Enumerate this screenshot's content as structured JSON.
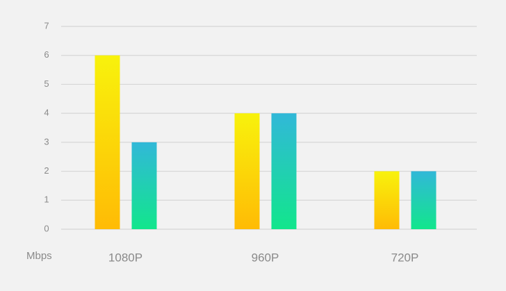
{
  "chart_data": {
    "type": "bar",
    "y_label": "Mbps",
    "categories": [
      "1080P",
      "960P",
      "720P"
    ],
    "series": [
      {
        "color": [
          "#f8f20c",
          "#ffbb05"
        ],
        "values": [
          6,
          4,
          2
        ]
      },
      {
        "color": [
          "#31b8d8",
          "#12e68c"
        ],
        "values": [
          3,
          4,
          2
        ]
      }
    ],
    "ylim": [
      0,
      7
    ],
    "yticks": [
      0,
      1,
      2,
      3,
      4,
      5,
      6,
      7
    ],
    "grid": true
  }
}
